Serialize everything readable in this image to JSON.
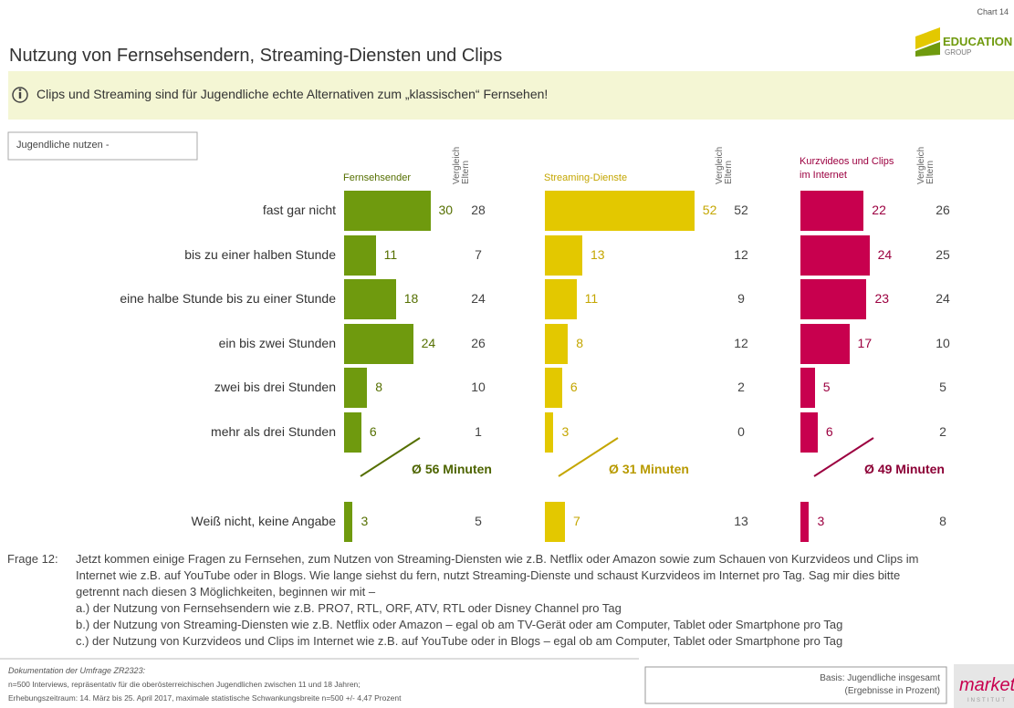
{
  "header": {
    "chart_label": "Chart 14",
    "logo_main": "EDUCATION",
    "logo_sub": "GROUP"
  },
  "title": "Nutzung von Fernsehsendern, Streaming-Diensten und Clips",
  "note": "Clips und Streaming sind für Jugendliche echte Alternativen zum „klassischen“ Fernsehen!",
  "filter_label": "Jugendliche nutzen -",
  "chart_data": {
    "type": "bar",
    "categories": [
      "fast gar nicht",
      "bis zu einer halben Stunde",
      "eine halbe Stunde  bis zu einer Stunde",
      "ein bis zwei Stunden",
      "zwei bis drei Stunden",
      "mehr als drei Stunden",
      "Weiß nicht, keine Angabe"
    ],
    "series": [
      {
        "name": "Fernsehsender",
        "color": "#6f9a0e",
        "label_color": "#556f00",
        "values": [
          30,
          11,
          18,
          24,
          8,
          6,
          3
        ],
        "compare_label": "Vergleich Eltern",
        "compare_values": [
          28,
          7,
          24,
          26,
          10,
          1,
          5
        ],
        "average": "Ø 56 Minuten",
        "average_color": "#4d6400"
      },
      {
        "name": "Streaming-Dienste",
        "color": "#e3c800",
        "label_color": "#c4a600",
        "values": [
          52,
          13,
          11,
          8,
          6,
          3,
          7
        ],
        "compare_label": "Vergleich Eltern",
        "compare_values": [
          52,
          12,
          9,
          12,
          2,
          0,
          13
        ],
        "average": "Ø 31 Minuten",
        "average_color": "#b89a00"
      },
      {
        "name": "Kurzvideos und Clips im Internet",
        "color": "#c8004e",
        "label_color": "#9c0040",
        "values": [
          22,
          24,
          23,
          17,
          5,
          6,
          3
        ],
        "compare_label": "Vergleich Eltern",
        "compare_values": [
          26,
          25,
          24,
          10,
          5,
          2,
          8
        ],
        "average": "Ø 49 Minuten",
        "average_color": "#8c0036"
      }
    ]
  },
  "question": {
    "label": "Frage 12:",
    "lines": [
      "Jetzt kommen einige Fragen zu Fernsehen, zum Nutzen von Streaming-Diensten wie z.B. Netflix oder Amazon sowie zum Schauen von Kurzvideos und Clips im",
      "Internet wie z.B. auf YouTube oder in Blogs. Wie lange siehst du fern, nutzt Streaming-Dienste und schaust Kurzvideos im Internet pro Tag. Sag mir dies bitte",
      "getrennt nach diesen 3 Möglichkeiten, beginnen wir mit –",
      "a.) der Nutzung von Fernsehsendern wie z.B. PRO7, RTL, ORF, ATV, RTL oder Disney Channel pro Tag",
      "b.) der Nutzung von Streaming-Diensten wie z.B. Netflix oder Amazon – egal ob am TV-Gerät oder am Computer, Tablet oder Smartphone pro Tag",
      "c.) der Nutzung von Kurzvideos und Clips im Internet wie z.B. auf YouTube oder in Blogs – egal ob am Computer, Tablet oder Smartphone pro Tag"
    ]
  },
  "footer": {
    "doc_title": "Dokumentation der Umfrage ZR2323:",
    "lines": [
      "n=500 Interviews, repräsentativ für die oberösterreichischen Jugendlichen zwischen 11 und 18 Jahren;",
      "Erhebungszeitraum: 14. März bis 25. April 2017, maximale statistische Schwankungsbreite n=500 +/- 4,47 Prozent"
    ],
    "basis": [
      "Basis: Jugendliche insgesamt",
      "(Ergebnisse in Prozent)"
    ],
    "brand": "market",
    "brand_sub": "INSTITUT"
  }
}
